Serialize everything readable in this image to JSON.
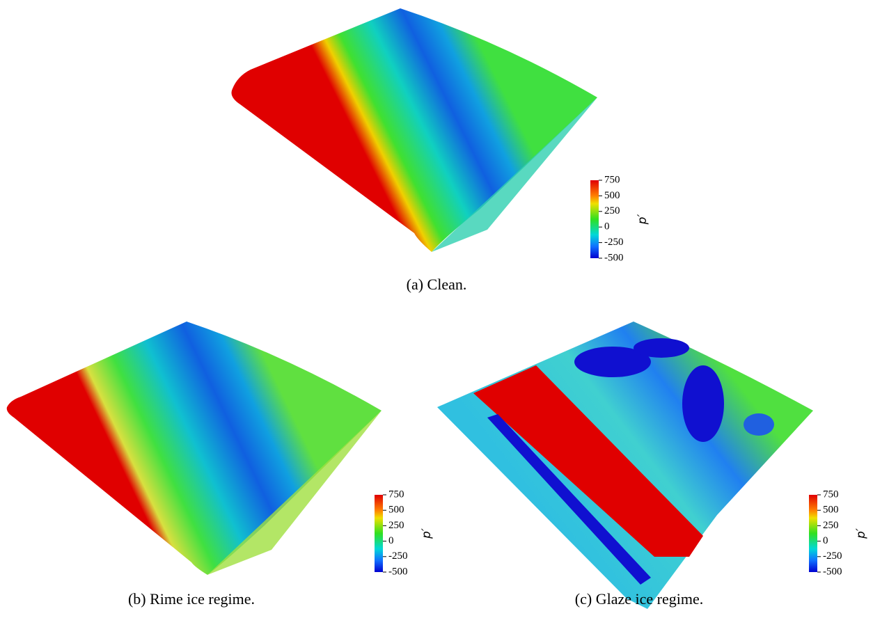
{
  "figures": [
    {
      "caption": "(a) Clean.",
      "colorbar": {
        "ticks": [
          750,
          500,
          250,
          0,
          -250,
          -500
        ],
        "label": "p′"
      }
    },
    {
      "caption": "(b) Rime ice regime.",
      "colorbar": {
        "ticks": [
          750,
          500,
          250,
          0,
          -250,
          -500
        ],
        "label": "p′"
      }
    },
    {
      "caption": "(c) Glaze ice regime.",
      "colorbar": {
        "ticks": [
          750,
          500,
          250,
          0,
          -250,
          -500
        ],
        "label": "p′"
      }
    }
  ]
}
